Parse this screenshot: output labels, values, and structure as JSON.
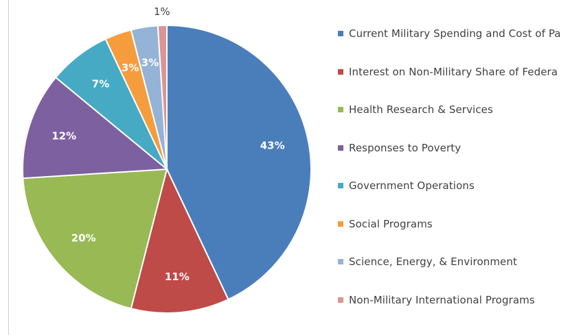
{
  "chart_data": {
    "type": "pie",
    "start_angle_deg": 0,
    "direction": "clockwise",
    "slices": [
      {
        "label": "Current Military Spending and Cost of Pa",
        "value": 43,
        "label_text": "43%",
        "color": "#4A7EBB"
      },
      {
        "label": "Interest on Non-Military Share of Federa",
        "value": 11,
        "label_text": "11%",
        "color": "#BE4B48"
      },
      {
        "label": "Health Research & Services",
        "value": 20,
        "label_text": "20%",
        "color": "#98B954"
      },
      {
        "label": "Responses to Poverty",
        "value": 12,
        "label_text": "12%",
        "color": "#7D60A0"
      },
      {
        "label": "Government Operations",
        "value": 7,
        "label_text": "7%",
        "color": "#46AAC5"
      },
      {
        "label": "Social Programs",
        "value": 3,
        "label_text": "3%",
        "color": "#F59D3D"
      },
      {
        "label": "Science, Energy, & Environment",
        "value": 3,
        "label_text": "3%",
        "color": "#95B3D7"
      },
      {
        "label": "Non-Military International Programs",
        "value": 1,
        "label_text": "1%",
        "color": "#D99694"
      }
    ],
    "legend_position": "right"
  }
}
